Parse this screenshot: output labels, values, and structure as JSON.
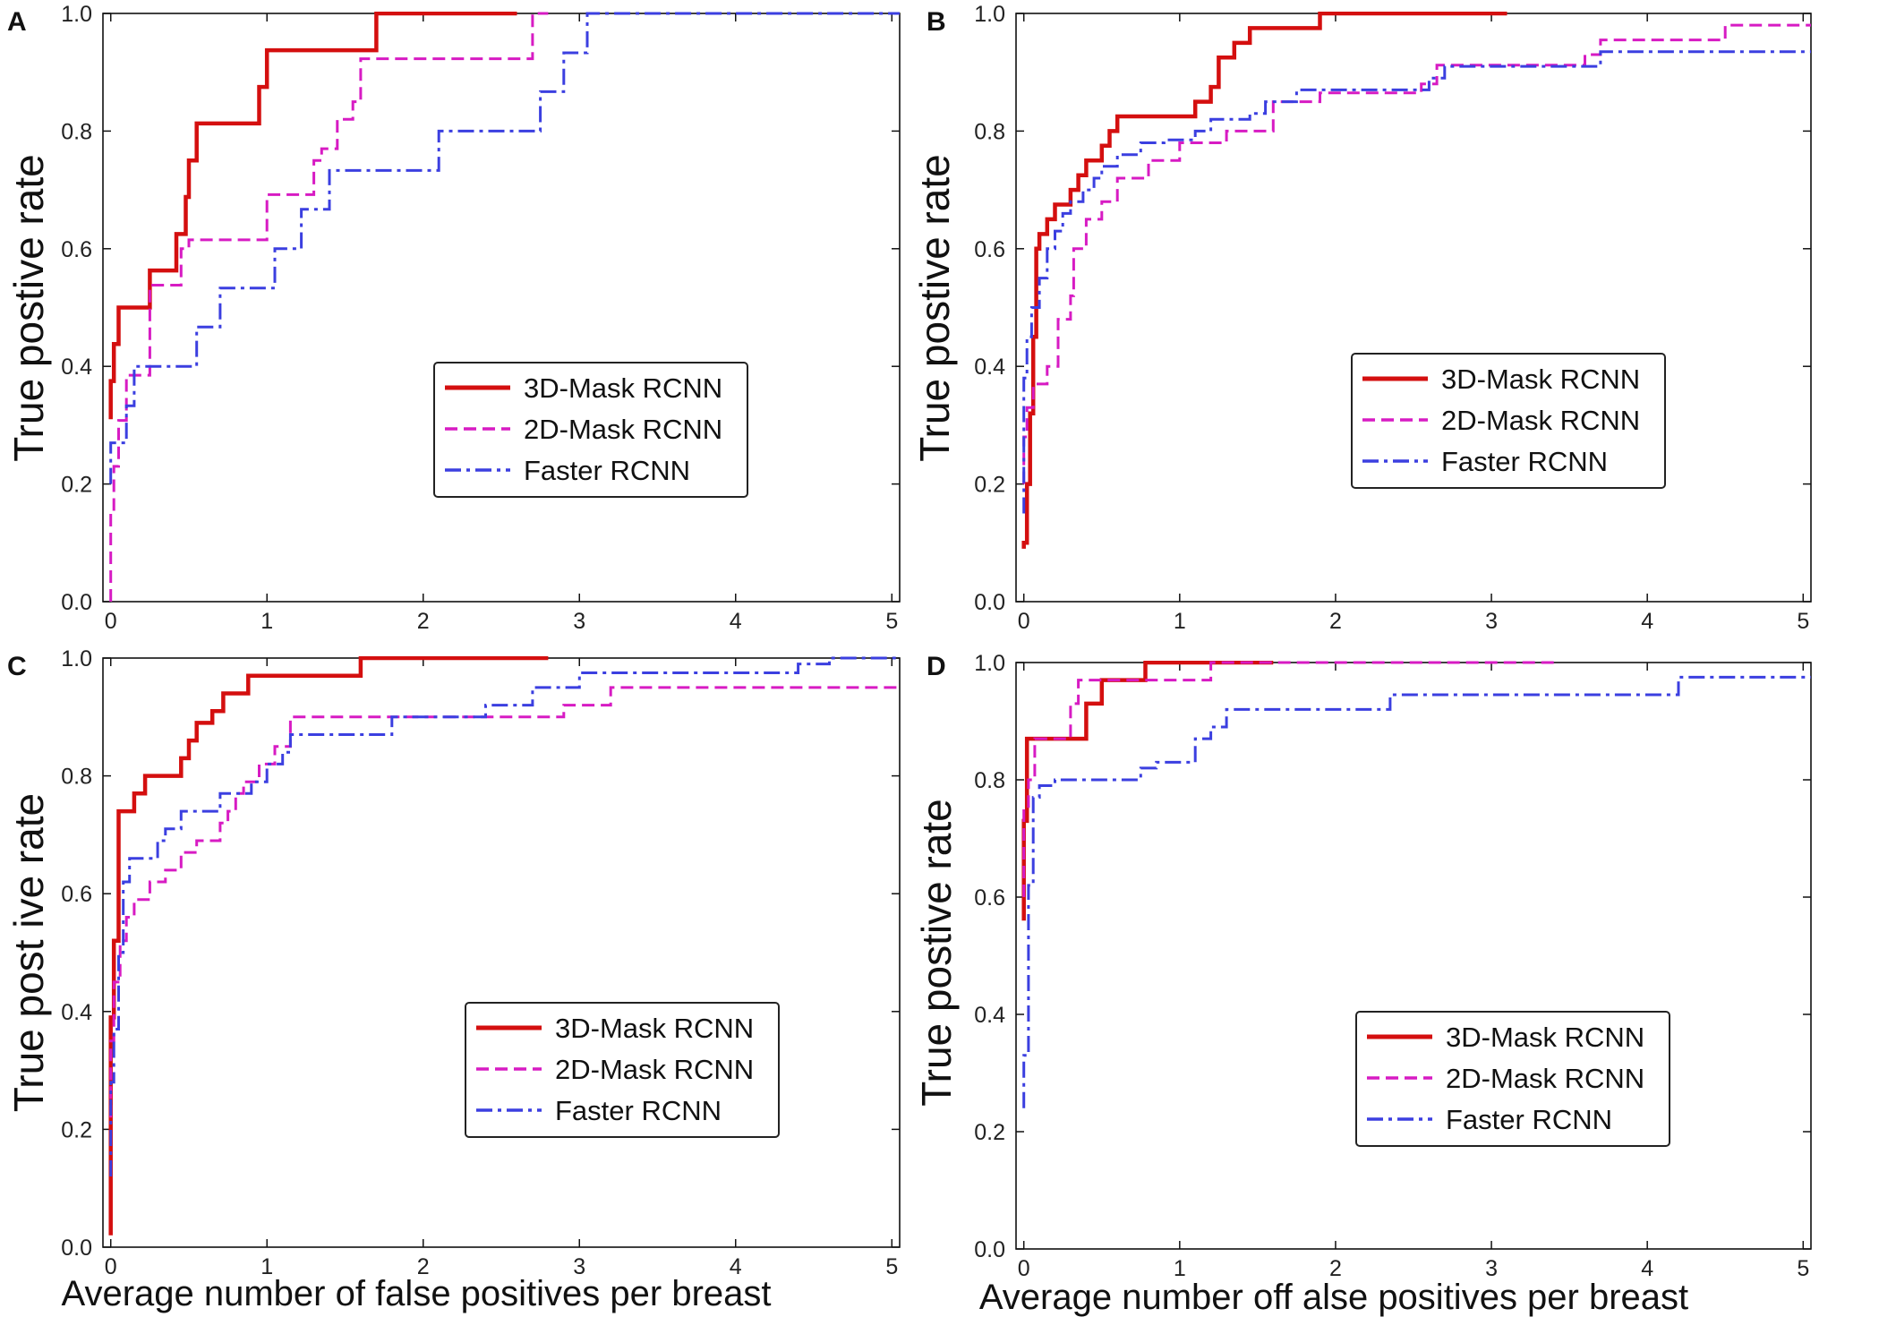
{
  "figure": {
    "xlabel_left": "Average number of false positives per breast",
    "xlabel_right": "Average number off alse positives per breast"
  },
  "chart_data": [
    {
      "type": "line",
      "panel": "A",
      "ylabel": "True postive rate",
      "xlabel": "",
      "xlim": [
        -0.05,
        5.05
      ],
      "ylim": [
        0,
        1
      ],
      "xticks": [
        "0",
        "1",
        "2",
        "3",
        "4",
        "5"
      ],
      "yticks": [
        "0.0",
        "0.2",
        "0.4",
        "0.6",
        "0.8",
        "1.0"
      ],
      "legend_position": "center-right",
      "series": [
        {
          "name": "3D-Mask RCNN",
          "color": "#d40f0f",
          "dash": "solid",
          "x": [
            0,
            0,
            0.02,
            0.02,
            0.05,
            0.05,
            0.25,
            0.25,
            0.42,
            0.42,
            0.48,
            0.48,
            0.5,
            0.5,
            0.55,
            0.55,
            0.6,
            0.6,
            0.95,
            0.95,
            1.0,
            1.0,
            1.7,
            1.7,
            2.6
          ],
          "y": [
            0.31,
            0.375,
            0.375,
            0.438,
            0.438,
            0.5,
            0.5,
            0.563,
            0.563,
            0.625,
            0.625,
            0.688,
            0.688,
            0.75,
            0.75,
            0.813,
            0.813,
            0.813,
            0.813,
            0.875,
            0.875,
            0.9375,
            0.9375,
            1.0,
            1.0
          ]
        },
        {
          "name": "2D-Mask RCNN",
          "color": "#d71bc3",
          "dash": "dashed",
          "x": [
            0,
            0,
            0.02,
            0.02,
            0.05,
            0.05,
            0.1,
            0.1,
            0.25,
            0.25,
            0.45,
            0.45,
            0.5,
            0.5,
            1.0,
            1.0,
            1.3,
            1.3,
            1.35,
            1.35,
            1.45,
            1.45,
            1.55,
            1.55,
            1.6,
            1.6,
            2.7,
            2.7,
            2.8
          ],
          "y": [
            0,
            0.154,
            0.154,
            0.23,
            0.23,
            0.308,
            0.308,
            0.385,
            0.385,
            0.538,
            0.538,
            0.6,
            0.6,
            0.615,
            0.615,
            0.692,
            0.692,
            0.75,
            0.75,
            0.77,
            0.77,
            0.82,
            0.82,
            0.85,
            0.85,
            0.923,
            0.923,
            1.0,
            1.0
          ]
        },
        {
          "name": "Faster RCNN",
          "color": "#3b3fe0",
          "dash": "dashdot",
          "x": [
            0,
            0,
            0.02,
            0.02,
            0.1,
            0.1,
            0.15,
            0.15,
            0.55,
            0.55,
            0.7,
            0.7,
            0.9,
            0.9,
            1.05,
            1.05,
            1.22,
            1.22,
            1.4,
            1.4,
            2.1,
            2.1,
            2.65,
            2.65,
            2.75,
            2.75,
            2.9,
            2.9,
            3.05,
            3.05,
            5.05
          ],
          "y": [
            0.2,
            0.27,
            0.27,
            0.27,
            0.27,
            0.333,
            0.333,
            0.4,
            0.4,
            0.467,
            0.467,
            0.533,
            0.533,
            0.533,
            0.533,
            0.6,
            0.6,
            0.667,
            0.667,
            0.733,
            0.733,
            0.8,
            0.8,
            0.8,
            0.8,
            0.867,
            0.867,
            0.933,
            0.933,
            1.0,
            1.0
          ]
        }
      ]
    },
    {
      "type": "line",
      "panel": "B",
      "ylabel": "True postive rate",
      "xlabel": "",
      "xlim": [
        -0.05,
        5.05
      ],
      "ylim": [
        0,
        1
      ],
      "xticks": [
        "0",
        "1",
        "2",
        "3",
        "4",
        "5"
      ],
      "yticks": [
        "0.0",
        "0.2",
        "0.4",
        "0.6",
        "0.8",
        "1.0"
      ],
      "legend_position": "center-right",
      "series": [
        {
          "name": "3D-Mask RCNN",
          "color": "#d40f0f",
          "dash": "solid",
          "x": [
            0,
            0,
            0.02,
            0.02,
            0.04,
            0.04,
            0.06,
            0.06,
            0.08,
            0.08,
            0.1,
            0.1,
            0.15,
            0.15,
            0.2,
            0.2,
            0.3,
            0.3,
            0.35,
            0.35,
            0.4,
            0.4,
            0.5,
            0.5,
            0.55,
            0.55,
            0.6,
            0.6,
            1.1,
            1.1,
            1.2,
            1.2,
            1.25,
            1.25,
            1.35,
            1.35,
            1.45,
            1.45,
            1.5,
            1.5,
            1.9,
            1.9,
            3.1
          ],
          "y": [
            0.09,
            0.1,
            0.1,
            0.2,
            0.2,
            0.32,
            0.32,
            0.45,
            0.45,
            0.6,
            0.6,
            0.625,
            0.625,
            0.65,
            0.65,
            0.675,
            0.675,
            0.7,
            0.7,
            0.725,
            0.725,
            0.75,
            0.75,
            0.775,
            0.775,
            0.8,
            0.8,
            0.825,
            0.825,
            0.85,
            0.85,
            0.875,
            0.875,
            0.925,
            0.925,
            0.95,
            0.95,
            0.975,
            0.975,
            0.975,
            0.975,
            1.0,
            1.0
          ]
        },
        {
          "name": "2D-Mask RCNN",
          "color": "#d71bc3",
          "dash": "dashed",
          "x": [
            0,
            0,
            0.02,
            0.02,
            0.06,
            0.06,
            0.15,
            0.15,
            0.22,
            0.22,
            0.3,
            0.3,
            0.32,
            0.32,
            0.4,
            0.4,
            0.5,
            0.5,
            0.6,
            0.6,
            0.8,
            0.8,
            1.0,
            1.0,
            1.3,
            1.3,
            1.6,
            1.6,
            1.9,
            1.9,
            2.55,
            2.55,
            2.65,
            2.65,
            3.6,
            3.6,
            3.7,
            3.7,
            4.5,
            4.5,
            5.05
          ],
          "y": [
            0.2,
            0.28,
            0.28,
            0.33,
            0.33,
            0.37,
            0.37,
            0.4,
            0.4,
            0.48,
            0.48,
            0.52,
            0.52,
            0.6,
            0.6,
            0.65,
            0.65,
            0.68,
            0.68,
            0.72,
            0.72,
            0.75,
            0.75,
            0.78,
            0.78,
            0.8,
            0.8,
            0.85,
            0.85,
            0.865,
            0.865,
            0.88,
            0.88,
            0.912,
            0.912,
            0.93,
            0.93,
            0.955,
            0.955,
            0.98,
            0.98
          ]
        },
        {
          "name": "Faster RCNN",
          "color": "#3b3fe0",
          "dash": "dashdot",
          "x": [
            0,
            0,
            0.02,
            0.02,
            0.05,
            0.05,
            0.1,
            0.1,
            0.15,
            0.15,
            0.2,
            0.2,
            0.25,
            0.25,
            0.3,
            0.3,
            0.38,
            0.38,
            0.45,
            0.45,
            0.5,
            0.5,
            0.6,
            0.6,
            0.75,
            0.75,
            0.9,
            0.9,
            1.1,
            1.1,
            1.2,
            1.2,
            1.45,
            1.45,
            1.55,
            1.55,
            1.75,
            1.75,
            2.6,
            2.6,
            2.7,
            2.7,
            3.7,
            3.7,
            5.05
          ],
          "y": [
            0.15,
            0.38,
            0.38,
            0.45,
            0.45,
            0.5,
            0.5,
            0.55,
            0.55,
            0.6,
            0.6,
            0.63,
            0.63,
            0.66,
            0.66,
            0.68,
            0.68,
            0.7,
            0.7,
            0.72,
            0.72,
            0.74,
            0.74,
            0.76,
            0.76,
            0.78,
            0.78,
            0.785,
            0.785,
            0.8,
            0.8,
            0.82,
            0.82,
            0.83,
            0.83,
            0.85,
            0.85,
            0.87,
            0.87,
            0.89,
            0.89,
            0.91,
            0.91,
            0.935,
            0.935
          ]
        }
      ]
    },
    {
      "type": "line",
      "panel": "C",
      "ylabel": "True post ive rate",
      "xlabel": "",
      "xlim": [
        -0.05,
        5.05
      ],
      "ylim": [
        0,
        1
      ],
      "xticks": [
        "0",
        "1",
        "2",
        "3",
        "4",
        "5"
      ],
      "yticks": [
        "0.0",
        "0.2",
        "0.4",
        "0.6",
        "0.8",
        "1.0"
      ],
      "legend_position": "lower-right",
      "series": [
        {
          "name": "3D-Mask RCNN",
          "color": "#d40f0f",
          "dash": "solid",
          "x": [
            0,
            0,
            0.02,
            0.02,
            0.05,
            0.05,
            0.1,
            0.1,
            0.15,
            0.15,
            0.22,
            0.22,
            0.45,
            0.45,
            0.5,
            0.5,
            0.55,
            0.55,
            0.65,
            0.65,
            0.72,
            0.72,
            0.88,
            0.88,
            1.6,
            1.6,
            2.8
          ],
          "y": [
            0.02,
            0.39,
            0.39,
            0.52,
            0.52,
            0.74,
            0.74,
            0.74,
            0.74,
            0.77,
            0.77,
            0.8,
            0.8,
            0.83,
            0.83,
            0.86,
            0.86,
            0.89,
            0.89,
            0.91,
            0.91,
            0.94,
            0.94,
            0.97,
            0.97,
            1.0,
            1.0
          ]
        },
        {
          "name": "2D-Mask RCNN",
          "color": "#d71bc3",
          "dash": "dashed",
          "x": [
            0,
            0,
            0.02,
            0.02,
            0.06,
            0.06,
            0.1,
            0.1,
            0.15,
            0.15,
            0.25,
            0.25,
            0.35,
            0.35,
            0.45,
            0.45,
            0.55,
            0.55,
            0.65,
            0.65,
            0.7,
            0.7,
            0.75,
            0.75,
            0.8,
            0.8,
            0.85,
            0.85,
            0.95,
            0.95,
            1.05,
            1.05,
            1.15,
            1.15,
            2.0,
            2.0,
            2.9,
            2.9,
            3.2,
            3.2,
            5.05
          ],
          "y": [
            0.22,
            0.35,
            0.35,
            0.45,
            0.45,
            0.52,
            0.52,
            0.56,
            0.56,
            0.59,
            0.59,
            0.62,
            0.62,
            0.64,
            0.64,
            0.67,
            0.67,
            0.69,
            0.69,
            0.69,
            0.69,
            0.72,
            0.72,
            0.74,
            0.74,
            0.77,
            0.77,
            0.79,
            0.79,
            0.82,
            0.82,
            0.85,
            0.85,
            0.9,
            0.9,
            0.9,
            0.9,
            0.92,
            0.92,
            0.95,
            0.95
          ]
        },
        {
          "name": "Faster RCNN",
          "color": "#3b3fe0",
          "dash": "dashdot",
          "x": [
            0,
            0,
            0.02,
            0.02,
            0.05,
            0.05,
            0.08,
            0.08,
            0.12,
            0.12,
            0.3,
            0.3,
            0.35,
            0.35,
            0.45,
            0.45,
            0.65,
            0.65,
            0.7,
            0.7,
            0.9,
            0.9,
            1.0,
            1.0,
            1.1,
            1.1,
            1.15,
            1.15,
            1.5,
            1.5,
            1.8,
            1.8,
            2.4,
            2.4,
            2.7,
            2.7,
            3.0,
            3.0,
            4.4,
            4.4,
            4.6,
            4.6,
            5.05
          ],
          "y": [
            0.12,
            0.28,
            0.28,
            0.37,
            0.37,
            0.5,
            0.5,
            0.62,
            0.62,
            0.66,
            0.66,
            0.69,
            0.69,
            0.71,
            0.71,
            0.74,
            0.74,
            0.74,
            0.74,
            0.77,
            0.77,
            0.79,
            0.79,
            0.82,
            0.82,
            0.84,
            0.84,
            0.87,
            0.87,
            0.87,
            0.87,
            0.9,
            0.9,
            0.92,
            0.92,
            0.95,
            0.95,
            0.975,
            0.975,
            0.99,
            0.99,
            1.0,
            1.0
          ]
        }
      ]
    },
    {
      "type": "line",
      "panel": "D",
      "ylabel": "True postive rate",
      "xlabel": "",
      "xlim": [
        -0.05,
        5.05
      ],
      "ylim": [
        0,
        1
      ],
      "xticks": [
        "0",
        "1",
        "2",
        "3",
        "4",
        "5"
      ],
      "yticks": [
        "0.0",
        "0.2",
        "0.4",
        "0.6",
        "0.8",
        "1.0"
      ],
      "legend_position": "lower-right",
      "series": [
        {
          "name": "3D-Mask RCNN",
          "color": "#d40f0f",
          "dash": "solid",
          "x": [
            0,
            0,
            0.02,
            0.02,
            0.05,
            0.05,
            0.4,
            0.4,
            0.5,
            0.5,
            0.78,
            0.78,
            1.6
          ],
          "y": [
            0.56,
            0.73,
            0.73,
            0.87,
            0.87,
            0.87,
            0.87,
            0.93,
            0.93,
            0.97,
            0.97,
            1.0,
            1.0
          ]
        },
        {
          "name": "2D-Mask RCNN",
          "color": "#d71bc3",
          "dash": "dashed",
          "x": [
            0,
            0,
            0.03,
            0.03,
            0.07,
            0.07,
            0.3,
            0.3,
            0.35,
            0.35,
            0.4,
            0.4,
            1.2,
            1.2,
            3.4
          ],
          "y": [
            0.6,
            0.75,
            0.75,
            0.8,
            0.8,
            0.87,
            0.87,
            0.93,
            0.93,
            0.97,
            0.97,
            0.97,
            0.97,
            1.0,
            1.0
          ]
        },
        {
          "name": "Faster RCNN",
          "color": "#3b3fe0",
          "dash": "dashdot",
          "x": [
            0,
            0,
            0.03,
            0.03,
            0.06,
            0.06,
            0.1,
            0.1,
            0.2,
            0.2,
            0.75,
            0.75,
            0.85,
            0.85,
            1.1,
            1.1,
            1.2,
            1.2,
            1.3,
            1.3,
            2.35,
            2.35,
            4.2,
            4.2,
            5.05
          ],
          "y": [
            0.24,
            0.33,
            0.33,
            0.62,
            0.62,
            0.77,
            0.77,
            0.79,
            0.79,
            0.8,
            0.8,
            0.82,
            0.82,
            0.83,
            0.83,
            0.87,
            0.87,
            0.89,
            0.89,
            0.92,
            0.92,
            0.945,
            0.945,
            0.975,
            0.975
          ]
        }
      ]
    }
  ]
}
